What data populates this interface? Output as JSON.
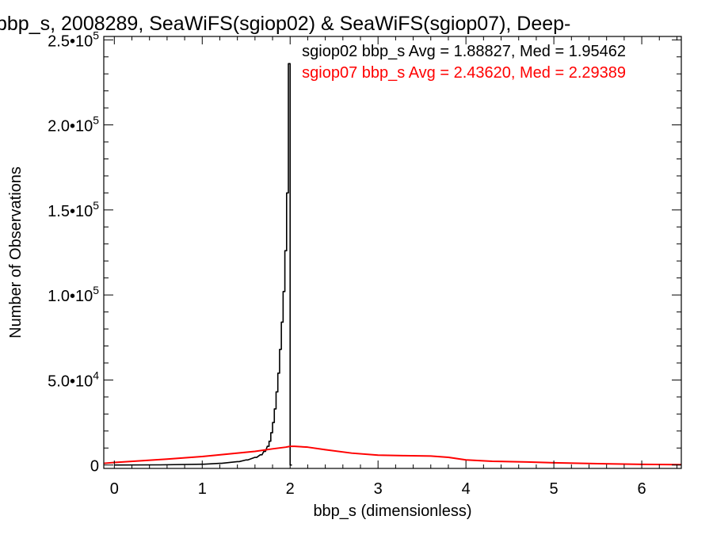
{
  "chart_data": {
    "type": "histogram",
    "title": "bbp_s, 2008289, SeaWiFS(sgiop02) & SeaWiFS(sgiop07), Deep-",
    "xlabel": "bbp_s (dimensionless)",
    "ylabel": "Number of Observations",
    "xlim": [
      -0.12,
      6.45
    ],
    "ylim": [
      -2000,
      252000
    ],
    "x_ticks": [
      0,
      1,
      2,
      3,
      4,
      5,
      6
    ],
    "x_tick_labels": [
      "0",
      "1",
      "2",
      "3",
      "4",
      "5",
      "6"
    ],
    "y_ticks": [
      0,
      50000,
      100000,
      150000,
      200000,
      250000
    ],
    "y_tick_labels": [
      {
        "mantissa": "0",
        "exp": ""
      },
      {
        "mantissa": "5.0•10",
        "exp": "4"
      },
      {
        "mantissa": "1.0•10",
        "exp": "5"
      },
      {
        "mantissa": "1.5•10",
        "exp": "5"
      },
      {
        "mantissa": "2.0•10",
        "exp": "5"
      },
      {
        "mantissa": "2.5•10",
        "exp": "5"
      }
    ],
    "grid": false,
    "legend_position": "top-right",
    "series": [
      {
        "name": "sgiop02",
        "label": "sgiop02 bbp_s Avg = 1.88827, Med = 1.95462",
        "color": "#000000",
        "style": "step",
        "bin_width": 0.02,
        "x": [
          0.0,
          0.5,
          1.0,
          1.2,
          1.4,
          1.5,
          1.6,
          1.66,
          1.7,
          1.74,
          1.76,
          1.78,
          1.8,
          1.82,
          1.84,
          1.86,
          1.88,
          1.9,
          1.92,
          1.94,
          1.96,
          1.98,
          2.0
        ],
        "values": [
          0,
          100,
          500,
          1000,
          2000,
          3000,
          4500,
          6000,
          8000,
          11000,
          14000,
          19000,
          25000,
          33000,
          43000,
          54000,
          68000,
          84000,
          102000,
          126000,
          160000,
          236000,
          0
        ]
      },
      {
        "name": "sgiop07",
        "label": "sgiop07 bbp_s Avg = 2.43620, Med = 2.29389",
        "color": "#ff0000",
        "style": "line",
        "x": [
          -0.12,
          0.0,
          0.3,
          0.6,
          1.0,
          1.3,
          1.6,
          1.8,
          1.95,
          2.0,
          2.05,
          2.2,
          2.4,
          2.7,
          3.0,
          3.3,
          3.6,
          3.8,
          4.0,
          4.3,
          4.7,
          5.0,
          5.5,
          6.0,
          6.45
        ],
        "values": [
          1000,
          1500,
          2500,
          3500,
          5000,
          6500,
          8000,
          9500,
          10500,
          11000,
          11000,
          10500,
          9000,
          7000,
          5800,
          5500,
          5300,
          4500,
          3000,
          2200,
          1800,
          1300,
          800,
          400,
          200
        ]
      }
    ]
  }
}
